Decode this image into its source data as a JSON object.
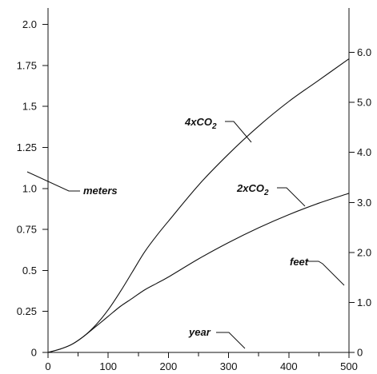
{
  "chart_data": {
    "type": "line",
    "title": "",
    "xlabel": "year",
    "ylabel": "meters",
    "y2label": "feet",
    "xlim": [
      0,
      500
    ],
    "ylim": [
      0,
      2.1
    ],
    "y2lim": [
      0,
      6.889
    ],
    "grid": false,
    "legend": "none",
    "x_ticks": [
      0,
      100,
      200,
      300,
      400,
      500
    ],
    "x_tick_labels": [
      "0",
      "100",
      "200",
      "300",
      "400",
      "500"
    ],
    "y_ticks": [
      0,
      0.25,
      0.5,
      0.75,
      1.0,
      1.25,
      1.5,
      1.75,
      2.0
    ],
    "y_tick_labels": [
      "0",
      "0.25",
      "0.5",
      "0.75",
      "1.0",
      "1.25",
      "1.5",
      "1.75",
      "2.0"
    ],
    "y2_ticks": [
      0,
      1,
      2,
      3,
      4,
      5,
      6
    ],
    "y2_tick_labels": [
      "0",
      "1.0",
      "2.0",
      "3.0",
      "4.0",
      "5.0",
      "6.0"
    ],
    "annotations": {
      "meters": "meters",
      "feet": "feet",
      "year": "year",
      "series_4x": "4xCO",
      "series_2x": "2xCO",
      "subscript": "2"
    },
    "series": [
      {
        "name": "4xCO2",
        "x": [
          0,
          20,
          40,
          60,
          80,
          100,
          120,
          140,
          160,
          180,
          200,
          250,
          300,
          350,
          400,
          450,
          500
        ],
        "y": [
          0,
          0.02,
          0.05,
          0.1,
          0.17,
          0.26,
          0.37,
          0.49,
          0.61,
          0.71,
          0.8,
          1.02,
          1.21,
          1.38,
          1.53,
          1.66,
          1.79
        ]
      },
      {
        "name": "2xCO2",
        "x": [
          0,
          20,
          40,
          60,
          80,
          100,
          120,
          140,
          160,
          180,
          200,
          250,
          300,
          350,
          400,
          450,
          500
        ],
        "y": [
          0,
          0.02,
          0.05,
          0.1,
          0.16,
          0.22,
          0.28,
          0.33,
          0.38,
          0.42,
          0.46,
          0.57,
          0.67,
          0.76,
          0.84,
          0.91,
          0.97
        ]
      }
    ],
    "colors": {
      "ink": "#111111",
      "background": "#ffffff"
    }
  }
}
